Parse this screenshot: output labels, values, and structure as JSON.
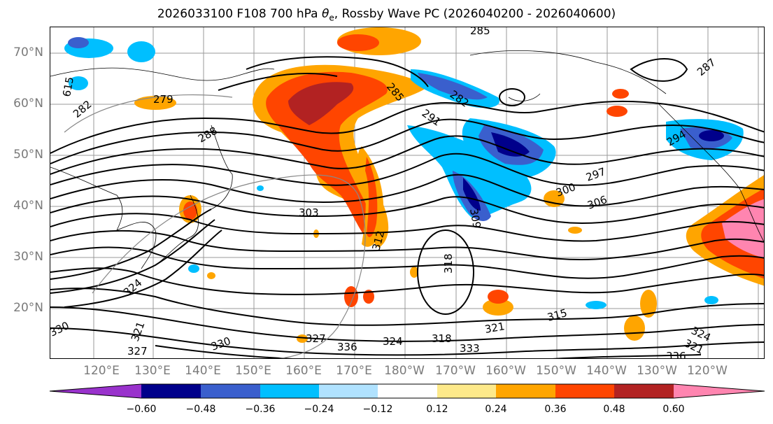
{
  "title": {
    "prefix": "2026033100 F108 700 hPa ",
    "theta": "θ",
    "theta_sub": "e",
    "suffix": ", Rossby Wave PC (2026040200 - 2026040600)"
  },
  "map": {
    "lat_labels": [
      "70°N",
      "60°N",
      "50°N",
      "40°N",
      "30°N",
      "20°N"
    ],
    "lon_labels": [
      "120°E",
      "130°E",
      "140°E",
      "150°E",
      "160°E",
      "170°E",
      "180°W",
      "170°W",
      "160°W",
      "150°W",
      "140°W",
      "130°W",
      "120°W"
    ],
    "contour_labels": [
      "285",
      "279",
      "282",
      "288",
      "285",
      "282",
      "291",
      "287",
      "294",
      "300",
      "297",
      "306",
      "303",
      "312",
      "318",
      "309",
      "315",
      "321",
      "324",
      "318",
      "327",
      "330",
      "336",
      "333",
      "324",
      "321",
      "336",
      "330",
      "327",
      "324",
      "321",
      "615"
    ]
  },
  "colorbar": {
    "ticks": [
      "−0.60",
      "−0.48",
      "−0.36",
      "−0.24",
      "−0.12",
      "0.12",
      "0.24",
      "0.36",
      "0.48",
      "0.60"
    ],
    "colors": [
      "#9932cc",
      "#00008b",
      "#3a5fcd",
      "#00bfff",
      "#b0e2ff",
      "#ffffff",
      "#fde98a",
      "#ffa500",
      "#ff4500",
      "#b22222",
      "#ff85b0"
    ]
  }
}
